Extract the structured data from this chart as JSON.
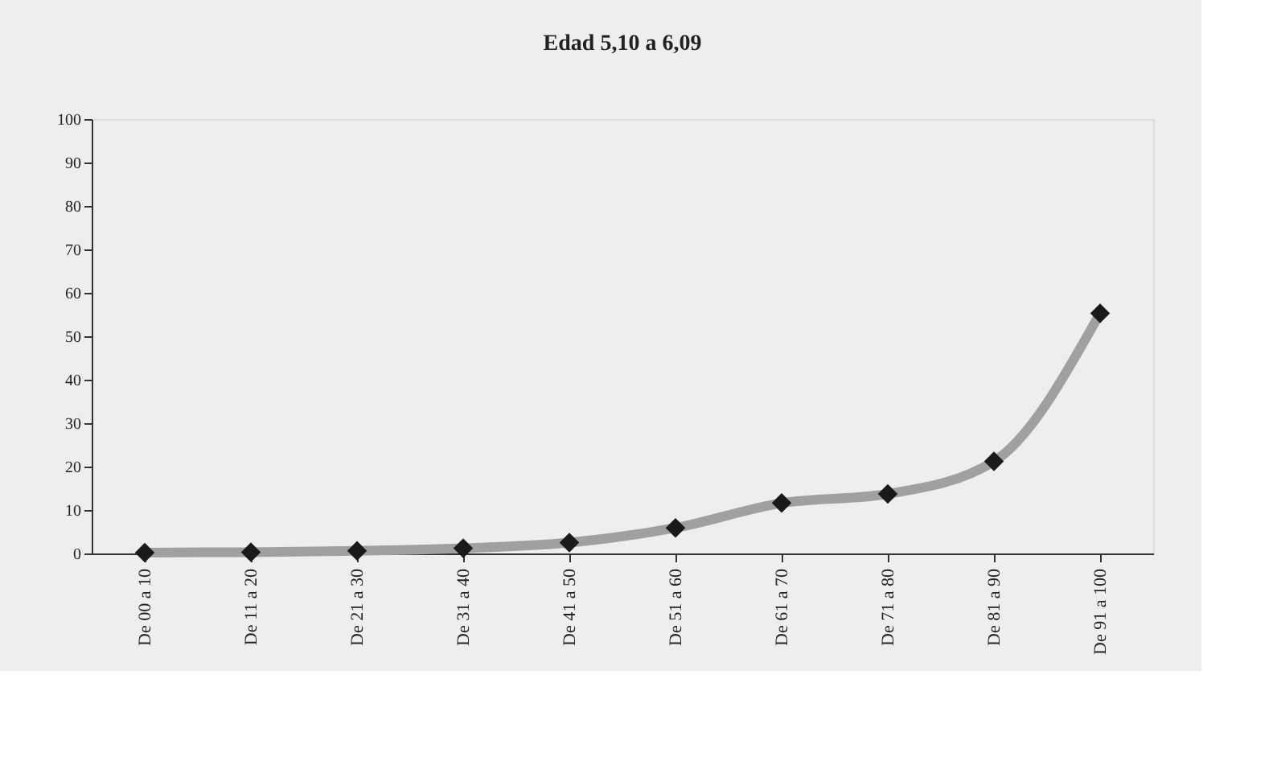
{
  "chart_data": {
    "type": "line",
    "title": "Edad 5,10 a 6,09",
    "categories": [
      "De 00 a 10",
      "De 11 a 20",
      "De 21 a 30",
      "De 31 a 40",
      "De 41 a 50",
      "De 51 a 60",
      "De 61 a 70",
      "De 71 a 80",
      "De 81 a 90",
      "De 91 a 100"
    ],
    "series": [
      {
        "color": "#a0a0a0",
        "values": [
          0.2,
          0.3,
          0.6,
          1.2,
          2.5,
          5.9,
          11.6,
          13.7,
          21.2,
          55.3
        ]
      }
    ],
    "ylim": [
      0,
      100
    ],
    "yticks": [
      0,
      10,
      20,
      30,
      40,
      50,
      60,
      70,
      80,
      90,
      100
    ],
    "grid": false,
    "legend": false,
    "marker": "diamond",
    "line_style": "solid"
  }
}
